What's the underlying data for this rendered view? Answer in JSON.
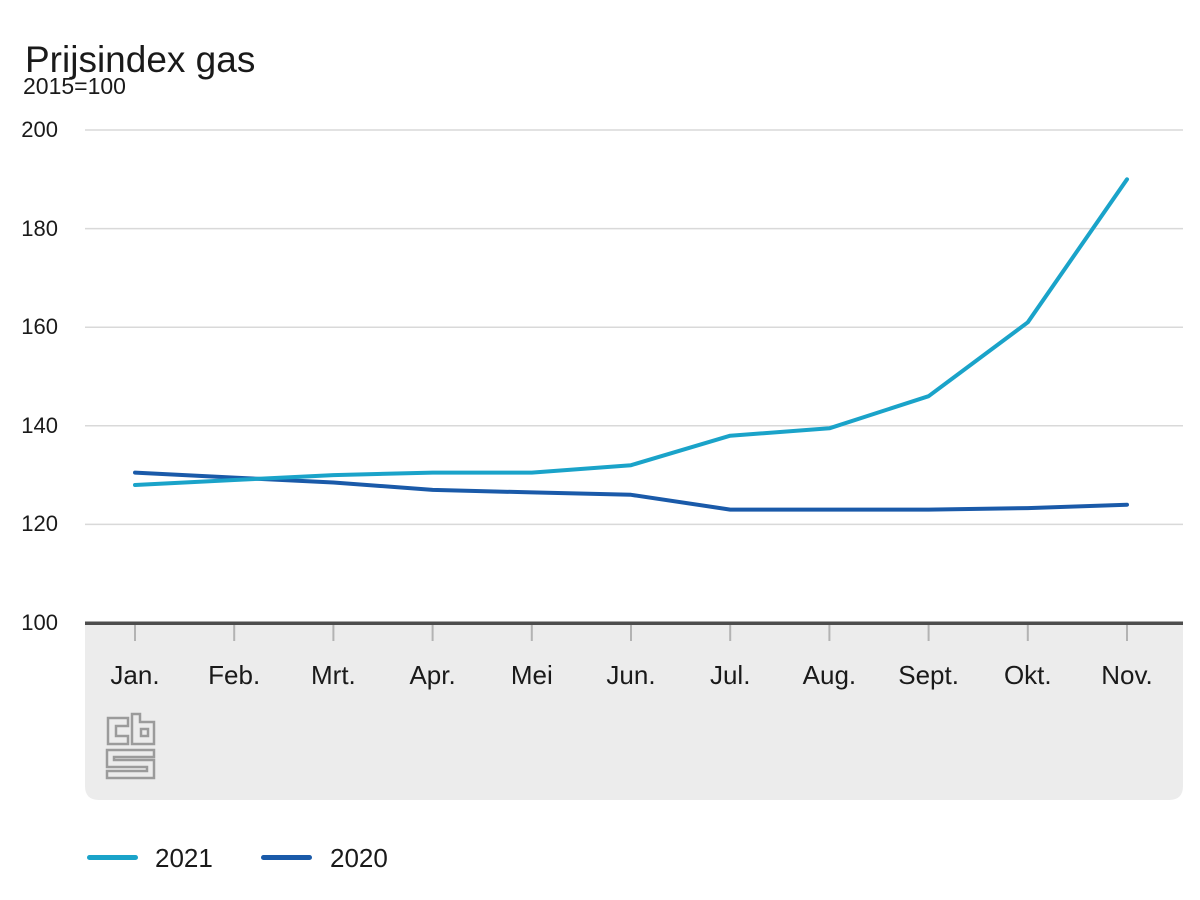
{
  "title": "Prijsindex gas",
  "subtitle": "2015=100",
  "colors": {
    "series_2021": "#1aa3c9",
    "series_2020": "#1a5aa9",
    "gridline": "#d9d9d9",
    "axis_baseline": "#4d4d4d",
    "band_background": "#ececec",
    "tick": "#b3b3b3",
    "logo_gray": "#9b9b9b",
    "text": "#1a1a1a"
  },
  "legend": {
    "items": [
      {
        "label": "2021",
        "color": "#1aa3c9"
      },
      {
        "label": "2020",
        "color": "#1a5aa9"
      }
    ],
    "position": "bottom"
  },
  "logo": {
    "name": "cbs-logo"
  },
  "chart_data": {
    "type": "line",
    "title": "Prijsindex gas",
    "subtitle": "2015=100",
    "categories": [
      "Jan.",
      "Feb.",
      "Mrt.",
      "Apr.",
      "Mei",
      "Jun.",
      "Jul.",
      "Aug.",
      "Sept.",
      "Okt.",
      "Nov."
    ],
    "series": [
      {
        "name": "2021",
        "color": "#1aa3c9",
        "values": [
          128,
          129,
          130,
          130.5,
          130.5,
          132,
          138,
          139.5,
          146,
          161,
          190
        ]
      },
      {
        "name": "2020",
        "color": "#1a5aa9",
        "values": [
          130.5,
          129.5,
          128.5,
          127,
          126.5,
          126,
          123,
          123,
          123,
          123.3,
          124
        ]
      }
    ],
    "xlabel": "",
    "ylabel": "2015=100",
    "ylim": [
      100,
      200
    ],
    "yticks": [
      100,
      120,
      140,
      160,
      180,
      200
    ],
    "grid": true,
    "legend_position": "bottom"
  }
}
